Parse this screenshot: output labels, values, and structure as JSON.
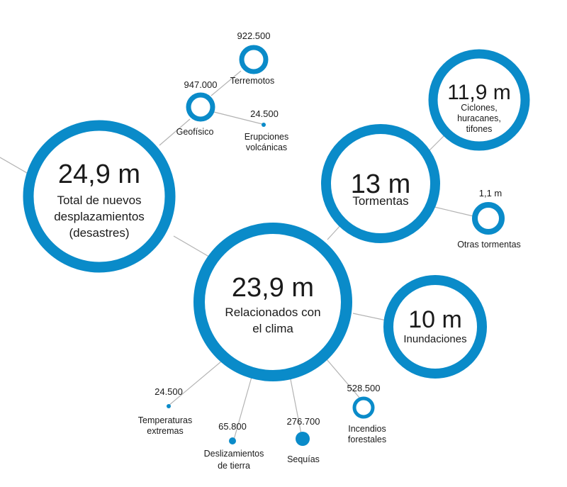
{
  "accent_color": "#0a8bc9",
  "nodes": {
    "total": {
      "value": "24,9 m",
      "label": [
        "Total de nuevos",
        "desplazamientos",
        "(desastres)"
      ]
    },
    "climate": {
      "value": "23,9 m",
      "label": [
        "Relacionados con",
        "el clima"
      ]
    },
    "storms": {
      "value": "13 m",
      "label": [
        "Tormentas"
      ]
    },
    "cyclones": {
      "value": "11,9 m",
      "label": [
        "Ciclones,",
        "huracanes,",
        "tifones"
      ]
    },
    "other_storms": {
      "value": "1,1 m",
      "label": [
        "Otras tormentas"
      ]
    },
    "floods": {
      "value": "10 m",
      "label": [
        "Inundaciones"
      ]
    },
    "geophysical": {
      "value": "947.000",
      "label": [
        "Geofísico"
      ]
    },
    "earthquakes": {
      "value": "922.500",
      "label": [
        "Terremotos"
      ]
    },
    "volcanic": {
      "value": "24.500",
      "label": [
        "Erupciones",
        "volcánicas"
      ]
    },
    "extreme_temps": {
      "value": "24.500",
      "label": [
        "Temperaturas",
        "extremas"
      ]
    },
    "landslides": {
      "value": "65.800",
      "label": [
        "Deslizamientos",
        "de tierra"
      ]
    },
    "droughts": {
      "value": "276.700",
      "label": [
        "Sequías"
      ]
    },
    "wildfires": {
      "value": "528.500",
      "label": [
        "Incendios",
        "forestales"
      ]
    }
  }
}
